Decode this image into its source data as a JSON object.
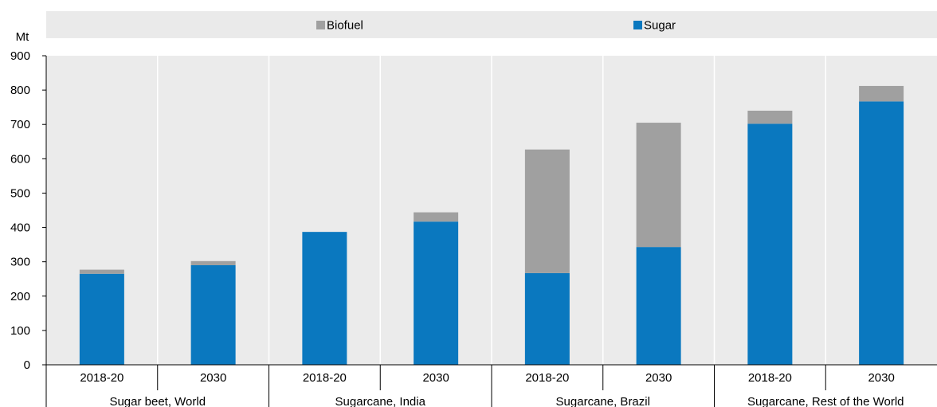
{
  "chart_data": {
    "type": "bar",
    "stacked": true,
    "y_unit_label": "Mt",
    "ylim": [
      0,
      900
    ],
    "yticks": [
      0,
      100,
      200,
      300,
      400,
      500,
      600,
      700,
      800,
      900
    ],
    "grid": "vertical separators between categories",
    "legend_position": "top",
    "groups": [
      {
        "label": "Sugar beet, World",
        "categories": [
          "2018-20",
          "2030"
        ]
      },
      {
        "label": "Sugarcane, India",
        "categories": [
          "2018-20",
          "2030"
        ]
      },
      {
        "label": "Sugarcane, Brazil",
        "categories": [
          "2018-20",
          "2030"
        ]
      },
      {
        "label": "Sugarcane, Rest of the World",
        "categories": [
          "2018-20",
          "2030"
        ]
      }
    ],
    "series": [
      {
        "name": "Sugar",
        "color": "#0a78bf",
        "values": [
          265,
          290,
          387,
          417,
          267,
          343,
          702,
          767
        ]
      },
      {
        "name": "Biofuel",
        "color": "#a0a0a0",
        "values": [
          12,
          12,
          0,
          27,
          360,
          362,
          38,
          45
        ]
      }
    ],
    "legend_order": [
      "Biofuel",
      "Sugar"
    ]
  }
}
